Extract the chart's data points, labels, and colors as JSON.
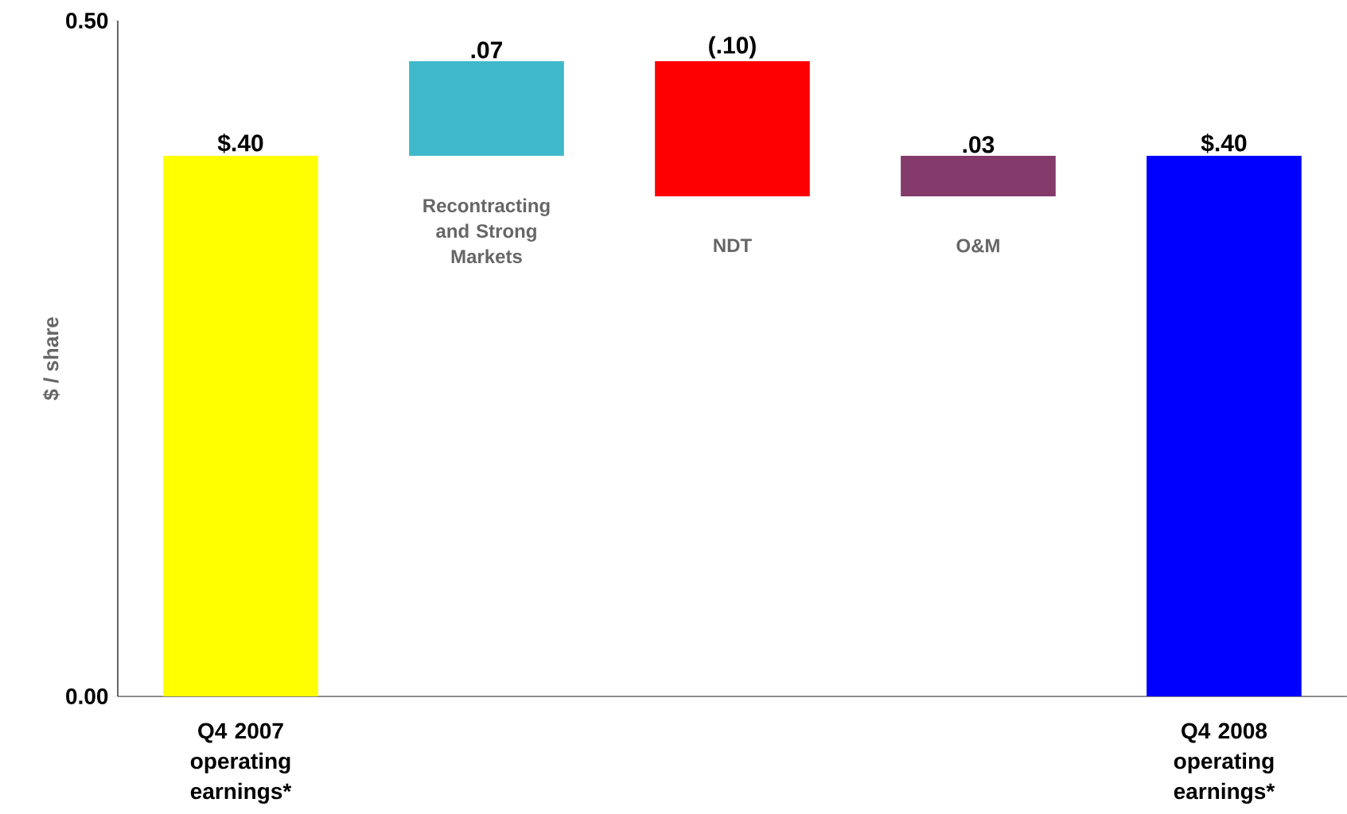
{
  "chart_data": {
    "type": "bar",
    "ylabel": "$ / share",
    "categories": [
      "Q4 2007 operating earnings*",
      "Recontracting and Strong Markets",
      "NDT",
      "O&M",
      "Q4 2008 operating earnings*"
    ],
    "values": [
      0.4,
      0.07,
      -0.1,
      0.03,
      0.4
    ],
    "base": [
      0,
      0.4,
      0.47,
      0.37,
      0
    ],
    "colors": [
      "#ffff00",
      "#40b8cc",
      "#ff0000",
      "#843a6a",
      "#0000ff"
    ],
    "value_labels": [
      "$.40",
      ".07",
      "(.10)",
      ".03",
      "$.40"
    ],
    "ylim": [
      0,
      0.5
    ],
    "yticks": [
      {
        "value": 0,
        "label": "0.00"
      },
      {
        "value": 0.5,
        "label": "0.50"
      }
    ],
    "grid": false
  }
}
